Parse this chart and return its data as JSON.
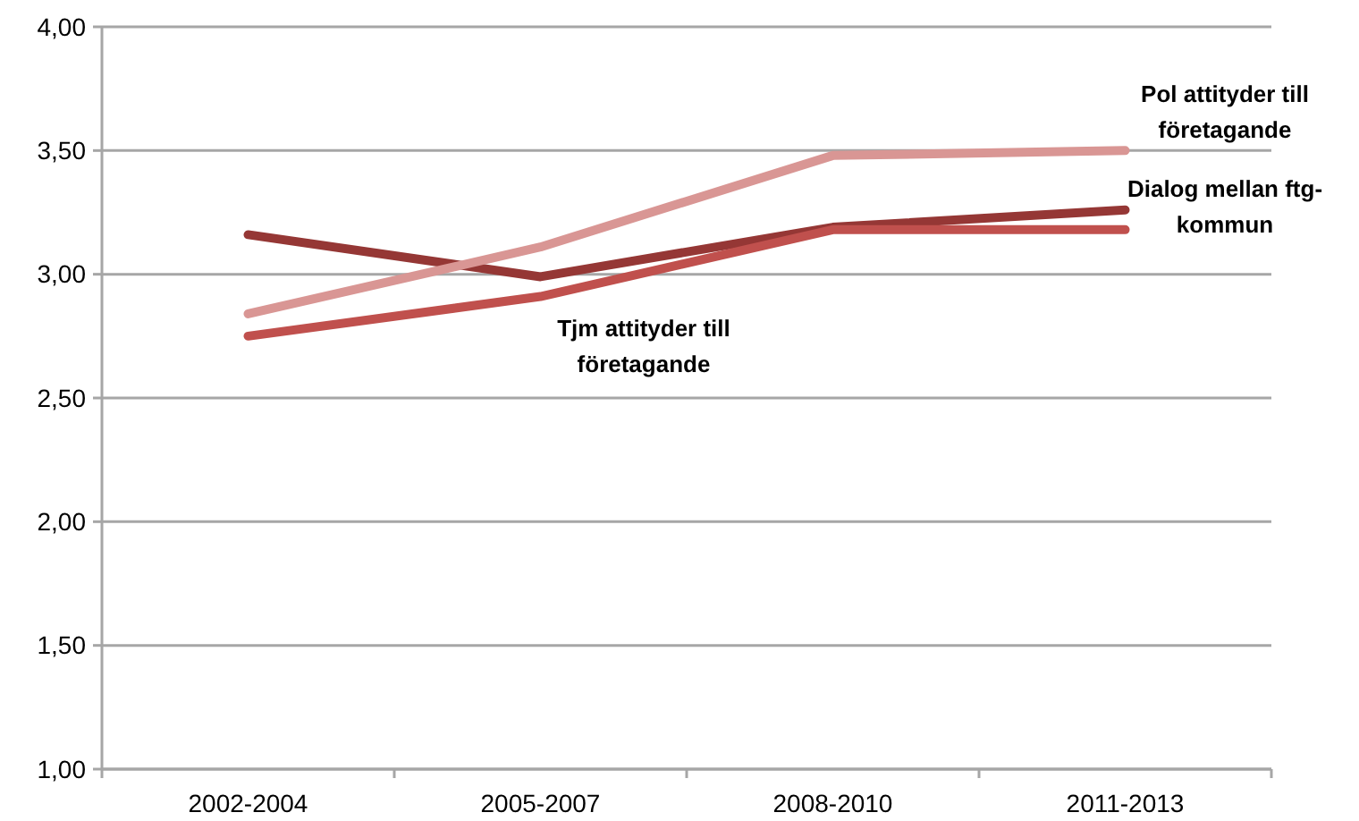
{
  "chart_data": {
    "type": "line",
    "categories": [
      "2002-2004",
      "2005-2007",
      "2008-2010",
      "2011-2013"
    ],
    "series": [
      {
        "name": "Dialog mellan ftg-kommun",
        "color": "#953735",
        "values": [
          3.16,
          2.99,
          3.19,
          3.26
        ]
      },
      {
        "name": "Pol attityder till företagande",
        "color": "#d99694",
        "values": [
          2.84,
          3.11,
          3.48,
          3.5
        ]
      },
      {
        "name": "Tjm attityder till företagande",
        "color": "#c0504d",
        "values": [
          2.75,
          2.91,
          3.18,
          3.18
        ]
      }
    ],
    "ylim": [
      1,
      4
    ],
    "yticks": [
      {
        "value": 1,
        "label": "1,00"
      },
      {
        "value": 1.5,
        "label": "1,50"
      },
      {
        "value": 2,
        "label": "2,00"
      },
      {
        "value": 2.5,
        "label": "2,50"
      },
      {
        "value": 3,
        "label": "3,00"
      },
      {
        "value": 3.5,
        "label": "3,50"
      },
      {
        "value": 4,
        "label": "4,00"
      }
    ],
    "grid": "y",
    "marker": "none",
    "line_style": "solid"
  }
}
